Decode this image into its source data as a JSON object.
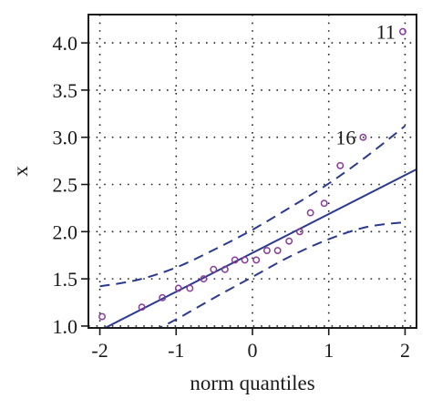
{
  "chart_data": {
    "type": "scatter",
    "title": "",
    "xlabel": "norm quantiles",
    "ylabel": "x",
    "xlim": [
      -2.15,
      2.15
    ],
    "ylim": [
      0.98,
      4.3
    ],
    "x_ticks": [
      -2,
      -1,
      0,
      1,
      2
    ],
    "x_tick_labels": [
      "-2",
      "-1",
      "0",
      "1",
      "2"
    ],
    "y_ticks": [
      1.0,
      1.5,
      2.0,
      2.5,
      3.0,
      3.5,
      4.0
    ],
    "y_tick_labels": [
      "1.0",
      "1.5",
      "2.0",
      "2.5",
      "3.0",
      "3.5",
      "4.0"
    ],
    "grid": true,
    "colors": {
      "points": "#8a3a9a",
      "line": "#2b3a8f",
      "grid": "#222222",
      "axis": "#1a1a1a"
    },
    "points": {
      "x": [
        -1.97,
        -1.45,
        -1.18,
        -0.97,
        -0.82,
        -0.64,
        -0.51,
        -0.36,
        -0.23,
        -0.1,
        0.05,
        0.19,
        0.33,
        0.48,
        0.62,
        0.76,
        0.94,
        1.15,
        1.45,
        1.97
      ],
      "y": [
        1.1,
        1.2,
        1.3,
        1.4,
        1.4,
        1.5,
        1.6,
        1.6,
        1.7,
        1.7,
        1.7,
        1.8,
        1.8,
        1.9,
        2.0,
        2.2,
        2.3,
        2.7,
        3.0,
        4.12
      ]
    },
    "reference_line": {
      "x": [
        -2.15,
        2.15
      ],
      "y": [
        0.89,
        2.66
      ]
    },
    "confidence_band": {
      "upper": {
        "x": [
          -2.0,
          -1.5,
          -1.0,
          -0.5,
          0.0,
          0.5,
          1.0,
          1.5,
          2.0
        ],
        "y": [
          1.42,
          1.49,
          1.62,
          1.81,
          2.02,
          2.26,
          2.51,
          2.8,
          3.12
        ]
      },
      "lower": {
        "x": [
          -1.3,
          -1.0,
          -0.5,
          0.0,
          0.5,
          1.0,
          1.5,
          2.0
        ],
        "y": [
          0.95,
          1.07,
          1.3,
          1.52,
          1.74,
          1.92,
          2.05,
          2.1
        ]
      }
    },
    "annotations": [
      {
        "text": "11",
        "x": 1.97,
        "y": 4.12
      },
      {
        "text": "16",
        "x": 1.45,
        "y": 3.0
      }
    ]
  }
}
